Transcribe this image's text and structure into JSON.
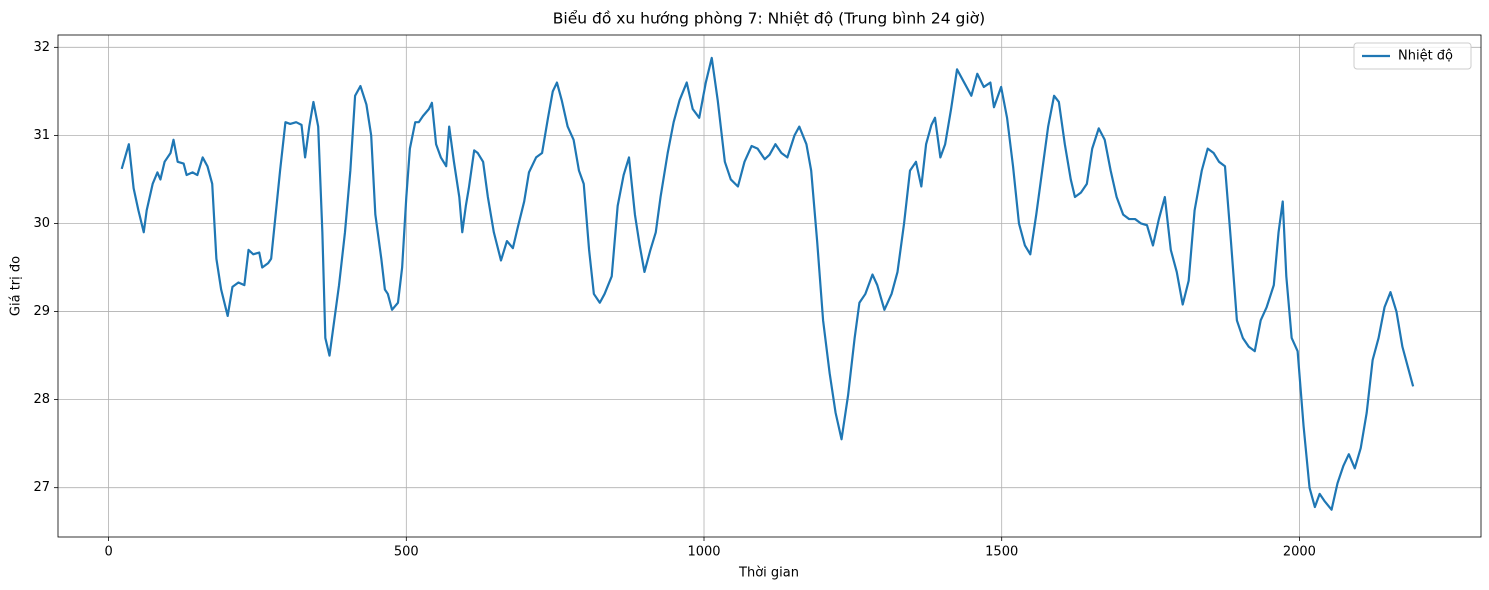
{
  "chart_data": {
    "type": "line",
    "title": "Biểu đồ xu hướng phòng 7: Nhiệt độ (Trung bình 24 giờ)",
    "x_label": "Thời gian",
    "y_label": "Giá trị đo",
    "x": [
      22,
      34,
      42,
      50,
      59,
      64,
      74,
      82,
      87,
      94,
      104,
      109,
      116,
      126,
      131,
      141,
      149,
      158,
      166,
      174,
      181,
      189,
      200,
      208,
      218,
      228,
      235,
      243,
      253,
      258,
      268,
      273,
      282,
      288,
      297,
      305,
      315,
      324,
      330,
      337,
      344,
      352,
      359,
      364,
      371,
      379,
      387,
      397,
      406,
      414,
      423,
      433,
      441,
      448,
      458,
      464,
      469,
      476,
      486,
      493,
      500,
      506,
      515,
      521,
      528,
      538,
      543,
      550,
      558,
      567,
      572,
      580,
      589,
      594,
      600,
      605,
      614,
      620,
      629,
      637,
      647,
      659,
      669,
      679,
      687,
      698,
      706,
      718,
      728,
      738,
      746,
      753,
      761,
      771,
      781,
      790,
      798,
      807,
      815,
      825,
      833,
      845,
      855,
      865,
      874,
      884,
      892,
      900,
      910,
      919,
      927,
      939,
      949,
      959,
      971,
      981,
      992,
      1003,
      1013,
      1023,
      1035,
      1045,
      1057,
      1068,
      1080,
      1090,
      1102,
      1110,
      1120,
      1130,
      1140,
      1152,
      1160,
      1172,
      1180,
      1190,
      1200,
      1211,
      1221,
      1231,
      1242,
      1253,
      1261,
      1271,
      1283,
      1291,
      1303,
      1315,
      1325,
      1336,
      1346,
      1356,
      1365,
      1373,
      1382,
      1388,
      1397,
      1405,
      1415,
      1425,
      1437,
      1449,
      1459,
      1470,
      1481,
      1487,
      1499,
      1509,
      1519,
      1529,
      1539,
      1548,
      1558,
      1568,
      1578,
      1588,
      1596,
      1606,
      1616,
      1623,
      1633,
      1643,
      1652,
      1663,
      1673,
      1683,
      1693,
      1704,
      1714,
      1724,
      1734,
      1744,
      1754,
      1764,
      1774,
      1784,
      1794,
      1804,
      1814,
      1824,
      1836,
      1846,
      1856,
      1865,
      1875,
      1885,
      1895,
      1905,
      1915,
      1925,
      1935,
      1945,
      1957,
      1965,
      1972,
      1978,
      1987,
      1997,
      2007,
      2017,
      2026,
      2034,
      2042,
      2054,
      2064,
      2074,
      2083,
      2093,
      2103,
      2113,
      2123,
      2133,
      2143,
      2153,
      2163,
      2173,
      2183,
      2191
    ],
    "series": [
      {
        "name": "Nhiệt độ",
        "color": "#1f77b4",
        "values": [
          30.62,
          30.9,
          30.4,
          30.15,
          29.9,
          30.15,
          30.45,
          30.58,
          30.5,
          30.7,
          30.8,
          30.95,
          30.7,
          30.68,
          30.55,
          30.58,
          30.55,
          30.75,
          30.65,
          30.45,
          29.6,
          29.25,
          28.95,
          29.28,
          29.33,
          29.3,
          29.7,
          29.65,
          29.67,
          29.5,
          29.55,
          29.6,
          30.2,
          30.6,
          31.15,
          31.13,
          31.15,
          31.12,
          30.75,
          31.1,
          31.38,
          31.1,
          29.9,
          28.7,
          28.5,
          28.9,
          29.3,
          29.9,
          30.6,
          31.45,
          31.56,
          31.35,
          31.0,
          30.1,
          29.6,
          29.25,
          29.2,
          29.02,
          29.1,
          29.5,
          30.3,
          30.85,
          31.15,
          31.15,
          31.22,
          31.3,
          31.37,
          30.9,
          30.75,
          30.65,
          31.1,
          30.7,
          30.3,
          29.9,
          30.2,
          30.4,
          30.83,
          30.8,
          30.7,
          30.3,
          29.9,
          29.58,
          29.8,
          29.72,
          29.95,
          30.25,
          30.58,
          30.75,
          30.8,
          31.2,
          31.5,
          31.6,
          31.4,
          31.1,
          30.95,
          30.6,
          30.45,
          29.7,
          29.2,
          29.1,
          29.2,
          29.4,
          30.2,
          30.55,
          30.75,
          30.1,
          29.75,
          29.45,
          29.7,
          29.9,
          30.3,
          30.8,
          31.15,
          31.4,
          31.6,
          31.3,
          31.2,
          31.6,
          31.88,
          31.4,
          30.7,
          30.5,
          30.42,
          30.7,
          30.88,
          30.85,
          30.73,
          30.78,
          30.9,
          30.8,
          30.75,
          31.0,
          31.1,
          30.9,
          30.6,
          29.8,
          28.9,
          28.3,
          27.85,
          27.55,
          28.05,
          28.7,
          29.1,
          29.2,
          29.42,
          29.3,
          29.02,
          29.2,
          29.45,
          30.0,
          30.6,
          30.7,
          30.42,
          30.9,
          31.12,
          31.2,
          30.75,
          30.9,
          31.3,
          31.75,
          31.6,
          31.45,
          31.7,
          31.55,
          31.6,
          31.32,
          31.55,
          31.2,
          30.65,
          30.0,
          29.75,
          29.65,
          30.1,
          30.6,
          31.1,
          31.45,
          31.38,
          30.9,
          30.5,
          30.3,
          30.35,
          30.45,
          30.85,
          31.08,
          30.95,
          30.6,
          30.3,
          30.1,
          30.05,
          30.05,
          30.0,
          29.98,
          29.75,
          30.05,
          30.3,
          29.7,
          29.45,
          29.08,
          29.35,
          30.15,
          30.6,
          30.85,
          30.8,
          30.7,
          30.65,
          29.8,
          28.9,
          28.7,
          28.6,
          28.55,
          28.9,
          29.05,
          29.3,
          29.9,
          30.25,
          29.4,
          28.7,
          28.55,
          27.7,
          27.0,
          26.78,
          26.93,
          26.85,
          26.75,
          27.05,
          27.25,
          27.38,
          27.22,
          27.45,
          27.85,
          28.45,
          28.7,
          29.05,
          29.22,
          29.0,
          28.6,
          28.35,
          28.15
        ]
      }
    ],
    "xlim": [
      -85,
      2305
    ],
    "ylim": [
      26.44,
      32.14
    ],
    "xticks": [
      0,
      500,
      1000,
      1500,
      2000
    ],
    "yticks": [
      27,
      28,
      29,
      30,
      31,
      32
    ],
    "grid": true,
    "legend": "upper right"
  }
}
